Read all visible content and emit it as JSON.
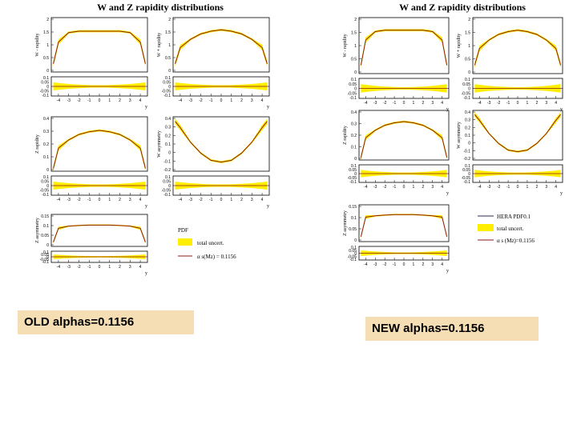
{
  "panels": [
    {
      "title": "W and Z rapidity distributions",
      "caption": "OLD alphas=0.1156",
      "legend": {
        "title": "PDF",
        "band": "total uncert.",
        "line": "α s(Mz) = 0.1156"
      }
    },
    {
      "title": "W and Z rapidity distributions",
      "caption": "NEW alphas=0.1156",
      "legend": {
        "line1": "HERA PDF0.1",
        "band": "total uncert.",
        "line": "α s (Mz)=0.1156"
      }
    }
  ],
  "axes": {
    "x_label": "y",
    "x_ticks": [
      "-4",
      "-3",
      "-2",
      "-1",
      "0",
      "1",
      "2",
      "3",
      "4"
    ],
    "ratio_ticks": [
      "0.1",
      "0.05",
      "0",
      "-0.05",
      "-0.1"
    ],
    "w_ticks": [
      "2",
      "1.5",
      "1",
      "0.5",
      "0"
    ],
    "asym_ticks": [
      "0.4",
      "0.3",
      "0.2",
      "0.1",
      "0",
      "-0.1",
      "-0.2"
    ],
    "z_ticks": [
      "0.4",
      "0.3",
      "0.2",
      "0.1",
      "0"
    ],
    "zasym_ticks": [
      "0.15",
      "0.1",
      "0.05",
      "0"
    ]
  },
  "colors": {
    "band": "#ffee00",
    "line": "#8b1a1a",
    "frame": "#000000"
  },
  "chart_data": [
    {
      "type": "area",
      "panel": "old",
      "subplot": "W- rapidity",
      "ylabel": "W - rapidity",
      "ylim": [
        0,
        2
      ],
      "x": [
        -4.5,
        -4,
        -3,
        -2,
        -1,
        0,
        1,
        2,
        3,
        4,
        4.5
      ],
      "y": [
        0.3,
        1.1,
        1.45,
        1.5,
        1.5,
        1.5,
        1.5,
        1.5,
        1.45,
        1.1,
        0.3
      ]
    },
    {
      "type": "area",
      "panel": "old",
      "subplot": "W+ rapidity",
      "ylabel": "W + rapidity",
      "ylim": [
        0,
        2
      ],
      "x": [
        -4.5,
        -4,
        -3,
        -2,
        -1,
        0,
        1,
        2,
        3,
        4,
        4.5
      ],
      "y": [
        0.3,
        0.9,
        1.2,
        1.4,
        1.5,
        1.55,
        1.5,
        1.4,
        1.2,
        0.9,
        0.3
      ]
    },
    {
      "type": "area",
      "panel": "old",
      "subplot": "Z rapidity",
      "ylabel": "Z rapidity",
      "ylim": [
        0,
        0.4
      ],
      "x": [
        -4.5,
        -4,
        -3,
        -2,
        -1,
        0,
        1,
        2,
        3,
        4,
        4.5
      ],
      "y": [
        0.02,
        0.17,
        0.23,
        0.27,
        0.29,
        0.3,
        0.29,
        0.27,
        0.23,
        0.17,
        0.02
      ]
    },
    {
      "type": "area",
      "panel": "old",
      "subplot": "W asymmetry",
      "ylabel": "W asymmetry",
      "ylim": [
        -0.2,
        0.4
      ],
      "x": [
        -4.5,
        -4,
        -3,
        -2,
        -1,
        0,
        1,
        2,
        3,
        4,
        4.5
      ],
      "y": [
        0.35,
        0.28,
        0.12,
        0.0,
        -0.08,
        -0.1,
        -0.08,
        0.0,
        0.12,
        0.28,
        0.35
      ]
    },
    {
      "type": "area",
      "panel": "old",
      "subplot": "Z asymmetry",
      "ylabel": "Z asymmetry",
      "ylim": [
        0,
        0.15
      ],
      "x": [
        -4.5,
        -4,
        -3,
        -2,
        -1,
        0,
        1,
        2,
        3,
        4,
        4.5
      ],
      "y": [
        0.02,
        0.085,
        0.095,
        0.098,
        0.1,
        0.1,
        0.1,
        0.098,
        0.095,
        0.085,
        0.02
      ]
    },
    {
      "type": "area",
      "panel": "new",
      "subplot": "W- rapidity",
      "ylabel": "W - rapidity",
      "ylim": [
        0,
        2
      ],
      "x": [
        -4.5,
        -4,
        -3,
        -2,
        -1,
        0,
        1,
        2,
        3,
        4,
        4.5
      ],
      "y": [
        0.3,
        1.2,
        1.5,
        1.55,
        1.55,
        1.55,
        1.55,
        1.55,
        1.5,
        1.2,
        0.3
      ]
    },
    {
      "type": "area",
      "panel": "new",
      "subplot": "W+ rapidity",
      "ylabel": "W + rapidity",
      "ylim": [
        0,
        2
      ],
      "x": [
        -4.5,
        -4,
        -3,
        -2,
        -1,
        0,
        1,
        2,
        3,
        4,
        4.5
      ],
      "y": [
        0.3,
        0.9,
        1.2,
        1.4,
        1.5,
        1.55,
        1.5,
        1.4,
        1.2,
        0.9,
        0.3
      ]
    },
    {
      "type": "area",
      "panel": "new",
      "subplot": "Z rapidity",
      "ylabel": "Z rapidity",
      "ylim": [
        0,
        0.4
      ],
      "x": [
        -4.5,
        -4,
        -3,
        -2,
        -1,
        0,
        1,
        2,
        3,
        4,
        4.5
      ],
      "y": [
        0.02,
        0.18,
        0.24,
        0.28,
        0.3,
        0.31,
        0.3,
        0.28,
        0.24,
        0.18,
        0.02
      ]
    },
    {
      "type": "area",
      "panel": "new",
      "subplot": "W asymmetry",
      "ylabel": "W asymmetry",
      "ylim": [
        -0.2,
        0.4
      ],
      "x": [
        -4.5,
        -4,
        -3,
        -2,
        -1,
        0,
        1,
        2,
        3,
        4,
        4.5
      ],
      "y": [
        0.35,
        0.28,
        0.12,
        0.0,
        -0.08,
        -0.1,
        -0.08,
        0.0,
        0.12,
        0.28,
        0.35
      ]
    },
    {
      "type": "area",
      "panel": "new",
      "subplot": "Z asymmetry",
      "ylabel": "Z asymmetry",
      "ylim": [
        0,
        0.15
      ],
      "x": [
        -4.5,
        -4,
        -3,
        -2,
        -1,
        0,
        1,
        2,
        3,
        4,
        4.5
      ],
      "y": [
        0.02,
        0.1,
        0.105,
        0.108,
        0.11,
        0.11,
        0.11,
        0.108,
        0.105,
        0.1,
        0.02
      ]
    }
  ]
}
